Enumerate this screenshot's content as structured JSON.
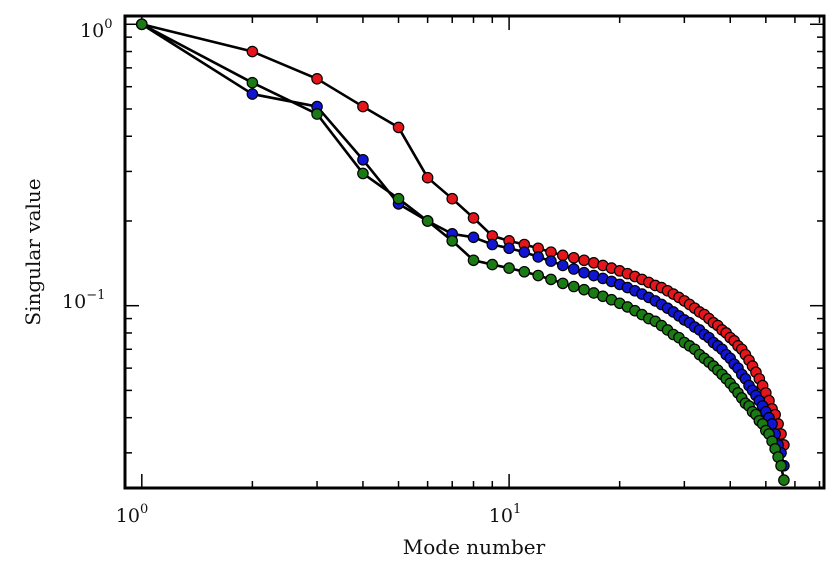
{
  "chart_data": {
    "type": "line",
    "xscale": "log",
    "yscale": "log",
    "xlim": [
      0.9,
      72
    ],
    "ylim": [
      0.0225,
      1.07
    ],
    "title": "",
    "xlabel": "Mode number",
    "ylabel": "Singular value",
    "x_ticks": [
      {
        "value": 1,
        "base": "10",
        "exp": "0"
      },
      {
        "value": 10,
        "base": "10",
        "exp": "1"
      }
    ],
    "y_ticks": [
      {
        "value": 1,
        "base": "10",
        "exp": "0"
      },
      {
        "value": 0.1,
        "base": "10",
        "exp": "−1"
      }
    ],
    "grid": false,
    "legend": null,
    "series": [
      {
        "name": "red",
        "color": "#e4161b",
        "values": [
          1.0,
          0.8,
          0.64,
          0.51,
          0.43,
          0.285,
          0.24,
          0.205,
          0.177,
          0.17,
          0.165,
          0.16,
          0.155,
          0.151,
          0.148,
          0.145,
          0.142,
          0.139,
          0.136,
          0.133,
          0.13,
          0.127,
          0.124,
          0.121,
          0.118,
          0.116,
          0.113,
          0.11,
          0.107,
          0.104,
          0.101,
          0.098,
          0.095,
          0.093,
          0.09,
          0.087,
          0.085,
          0.082,
          0.08,
          0.077,
          0.075,
          0.072,
          0.07,
          0.067,
          0.064,
          0.061,
          0.058,
          0.055,
          0.052,
          0.049,
          0.046,
          0.043,
          0.041,
          0.038,
          0.035,
          0.032
        ]
      },
      {
        "name": "blue",
        "color": "#1015d4",
        "values": [
          1.0,
          0.565,
          0.51,
          0.33,
          0.23,
          0.2,
          0.18,
          0.175,
          0.165,
          0.16,
          0.155,
          0.149,
          0.144,
          0.139,
          0.135,
          0.131,
          0.128,
          0.125,
          0.122,
          0.119,
          0.116,
          0.113,
          0.11,
          0.107,
          0.104,
          0.101,
          0.098,
          0.095,
          0.092,
          0.089,
          0.087,
          0.084,
          0.082,
          0.079,
          0.077,
          0.074,
          0.072,
          0.07,
          0.067,
          0.065,
          0.062,
          0.06,
          0.057,
          0.055,
          0.052,
          0.05,
          0.048,
          0.046,
          0.044,
          0.042,
          0.04,
          0.038,
          0.035,
          0.032,
          0.03,
          0.027
        ]
      },
      {
        "name": "green",
        "color": "#1a7a14",
        "values": [
          1.0,
          0.62,
          0.48,
          0.295,
          0.24,
          0.2,
          0.17,
          0.145,
          0.14,
          0.136,
          0.132,
          0.128,
          0.124,
          0.12,
          0.117,
          0.114,
          0.111,
          0.108,
          0.105,
          0.102,
          0.099,
          0.096,
          0.093,
          0.09,
          0.088,
          0.085,
          0.082,
          0.079,
          0.077,
          0.074,
          0.072,
          0.07,
          0.067,
          0.065,
          0.063,
          0.061,
          0.059,
          0.057,
          0.055,
          0.053,
          0.051,
          0.049,
          0.047,
          0.045,
          0.044,
          0.042,
          0.041,
          0.039,
          0.038,
          0.036,
          0.035,
          0.033,
          0.031,
          0.029,
          0.027,
          0.024
        ]
      }
    ]
  }
}
